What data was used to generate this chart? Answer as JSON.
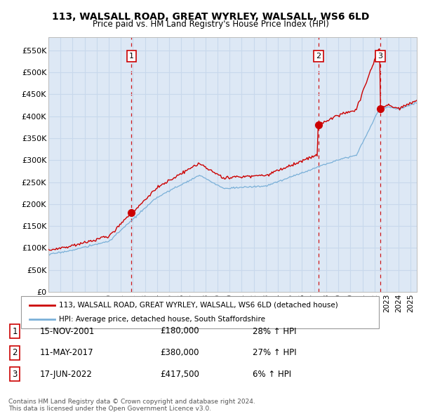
{
  "title": "113, WALSALL ROAD, GREAT WYRLEY, WALSALL, WS6 6LD",
  "subtitle": "Price paid vs. HM Land Registry's House Price Index (HPI)",
  "ylim": [
    0,
    580000
  ],
  "yticks": [
    0,
    50000,
    100000,
    150000,
    200000,
    250000,
    300000,
    350000,
    400000,
    450000,
    500000,
    550000
  ],
  "ytick_labels": [
    "£0",
    "£50K",
    "£100K",
    "£150K",
    "£200K",
    "£250K",
    "£300K",
    "£350K",
    "£400K",
    "£450K",
    "£500K",
    "£550K"
  ],
  "xlim": [
    1995.0,
    2025.5
  ],
  "background_color": "#dde8f5",
  "fig_bg_color": "#ffffff",
  "grid_color": "#c8d8ec",
  "red_line_color": "#cc0000",
  "blue_line_color": "#7ab0d8",
  "sales": [
    {
      "date": 2001.88,
      "price": 180000,
      "label": "1",
      "text_date": "15-NOV-2001",
      "text_price": "£180,000",
      "text_pct": "28% ↑ HPI"
    },
    {
      "date": 2017.36,
      "price": 380000,
      "label": "2",
      "text_date": "11-MAY-2017",
      "text_price": "£380,000",
      "text_pct": "27% ↑ HPI"
    },
    {
      "date": 2022.46,
      "price": 417500,
      "label": "3",
      "text_date": "17-JUN-2022",
      "text_price": "£417,500",
      "text_pct": "6% ↑ HPI"
    }
  ],
  "legend_red": "113, WALSALL ROAD, GREAT WYRLEY, WALSALL, WS6 6LD (detached house)",
  "legend_blue": "HPI: Average price, detached house, South Staffordshire",
  "footer1": "Contains HM Land Registry data © Crown copyright and database right 2024.",
  "footer2": "This data is licensed under the Open Government Licence v3.0."
}
